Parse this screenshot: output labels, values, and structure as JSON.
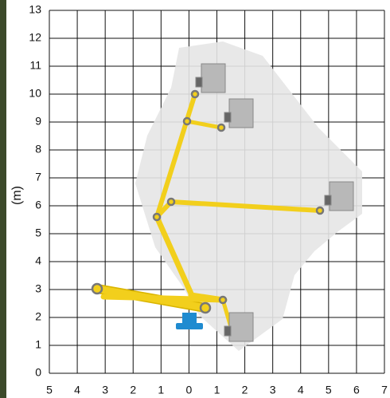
{
  "chart_data": {
    "type": "working-range",
    "y_label": "(m)",
    "xlim": [
      -5,
      7
    ],
    "ylim": [
      0,
      13
    ],
    "xticks": [
      {
        "value": -5,
        "label": "5"
      },
      {
        "value": -4,
        "label": "4"
      },
      {
        "value": -3,
        "label": "3"
      },
      {
        "value": -2,
        "label": "2"
      },
      {
        "value": -1,
        "label": "1"
      },
      0,
      1,
      2,
      3,
      4,
      5,
      6,
      7
    ],
    "yticks": [
      0,
      1,
      2,
      3,
      4,
      5,
      6,
      7,
      8,
      9,
      10,
      11,
      12,
      13
    ],
    "grid": true
  }
}
